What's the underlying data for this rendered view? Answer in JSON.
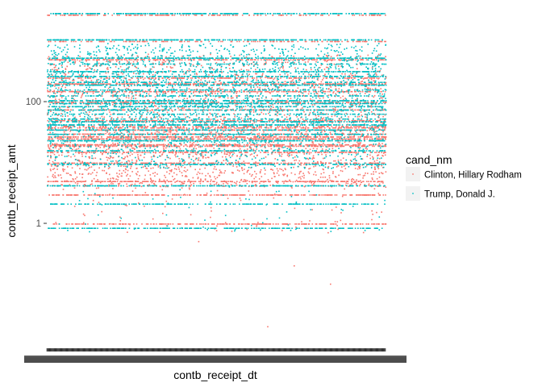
{
  "chart_data": {
    "type": "scatter",
    "title": "",
    "xlabel": "contb_receipt_dt",
    "ylabel": "contb_receipt_amt",
    "y_scale": "log10",
    "ylim": [
      0.01,
      2700
    ],
    "y_ticks": [
      {
        "value": 1,
        "label": "1"
      },
      {
        "value": 100,
        "label": "100"
      }
    ],
    "x_tick_labels_overlapping": true,
    "grid": false,
    "legend": {
      "title": "cand_nm",
      "position": "right",
      "entries": [
        {
          "name": "Clinton, Hillary Rodham",
          "color": "#F8766D"
        },
        {
          "name": "Trump, Donald J.",
          "color": "#00BFC4"
        }
      ]
    },
    "series": [
      {
        "name": "Clinton, Hillary Rodham",
        "color": "#F8766D",
        "common_amounts": [
          1,
          3,
          5,
          10,
          15,
          19,
          20,
          25,
          27,
          30,
          35,
          38,
          40,
          50,
          75,
          100,
          150,
          200,
          250,
          500,
          1000,
          2700
        ],
        "outliers": [
          0.02,
          0.1,
          0.2,
          0.5,
          2700
        ]
      },
      {
        "name": "Trump, Donald J.",
        "color": "#00BFC4",
        "common_amounts": [
          0.8,
          2,
          4,
          9,
          15,
          22,
          28,
          33,
          40,
          45,
          50,
          60,
          70,
          80,
          90,
          100,
          120,
          150,
          180,
          200,
          250,
          300,
          400,
          500,
          1000,
          2700
        ],
        "outliers": [
          0.8,
          2700
        ]
      }
    ]
  }
}
